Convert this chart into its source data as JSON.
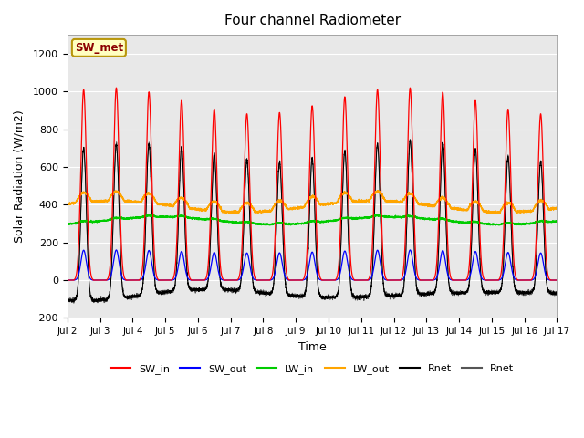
{
  "title": "Four channel Radiometer",
  "xlabel": "Time",
  "ylabel": "Solar Radiation (W/m2)",
  "ylim": [
    -200,
    1300
  ],
  "yticks": [
    -200,
    0,
    200,
    400,
    600,
    800,
    1000,
    1200
  ],
  "num_days": 15,
  "annotation_text": "SW_met",
  "annotation_color": "#8B0000",
  "annotation_bg": "#FFFFC0",
  "annotation_border": "#B8960C",
  "sw_in_color": "#FF0000",
  "sw_out_color": "#0000FF",
  "lw_in_color": "#00CC00",
  "lw_out_color": "#FFA500",
  "rnet_black_color": "#000000",
  "rnet_dark_color": "#555555",
  "plot_bg_color": "#E8E8E8",
  "grid_color": "#FFFFFF",
  "font_size": 9,
  "title_font_size": 11,
  "points_per_day": 288,
  "sw_in_max": 1000,
  "sw_out_max": 160,
  "lw_in_base": 315,
  "lw_out_base": 390
}
